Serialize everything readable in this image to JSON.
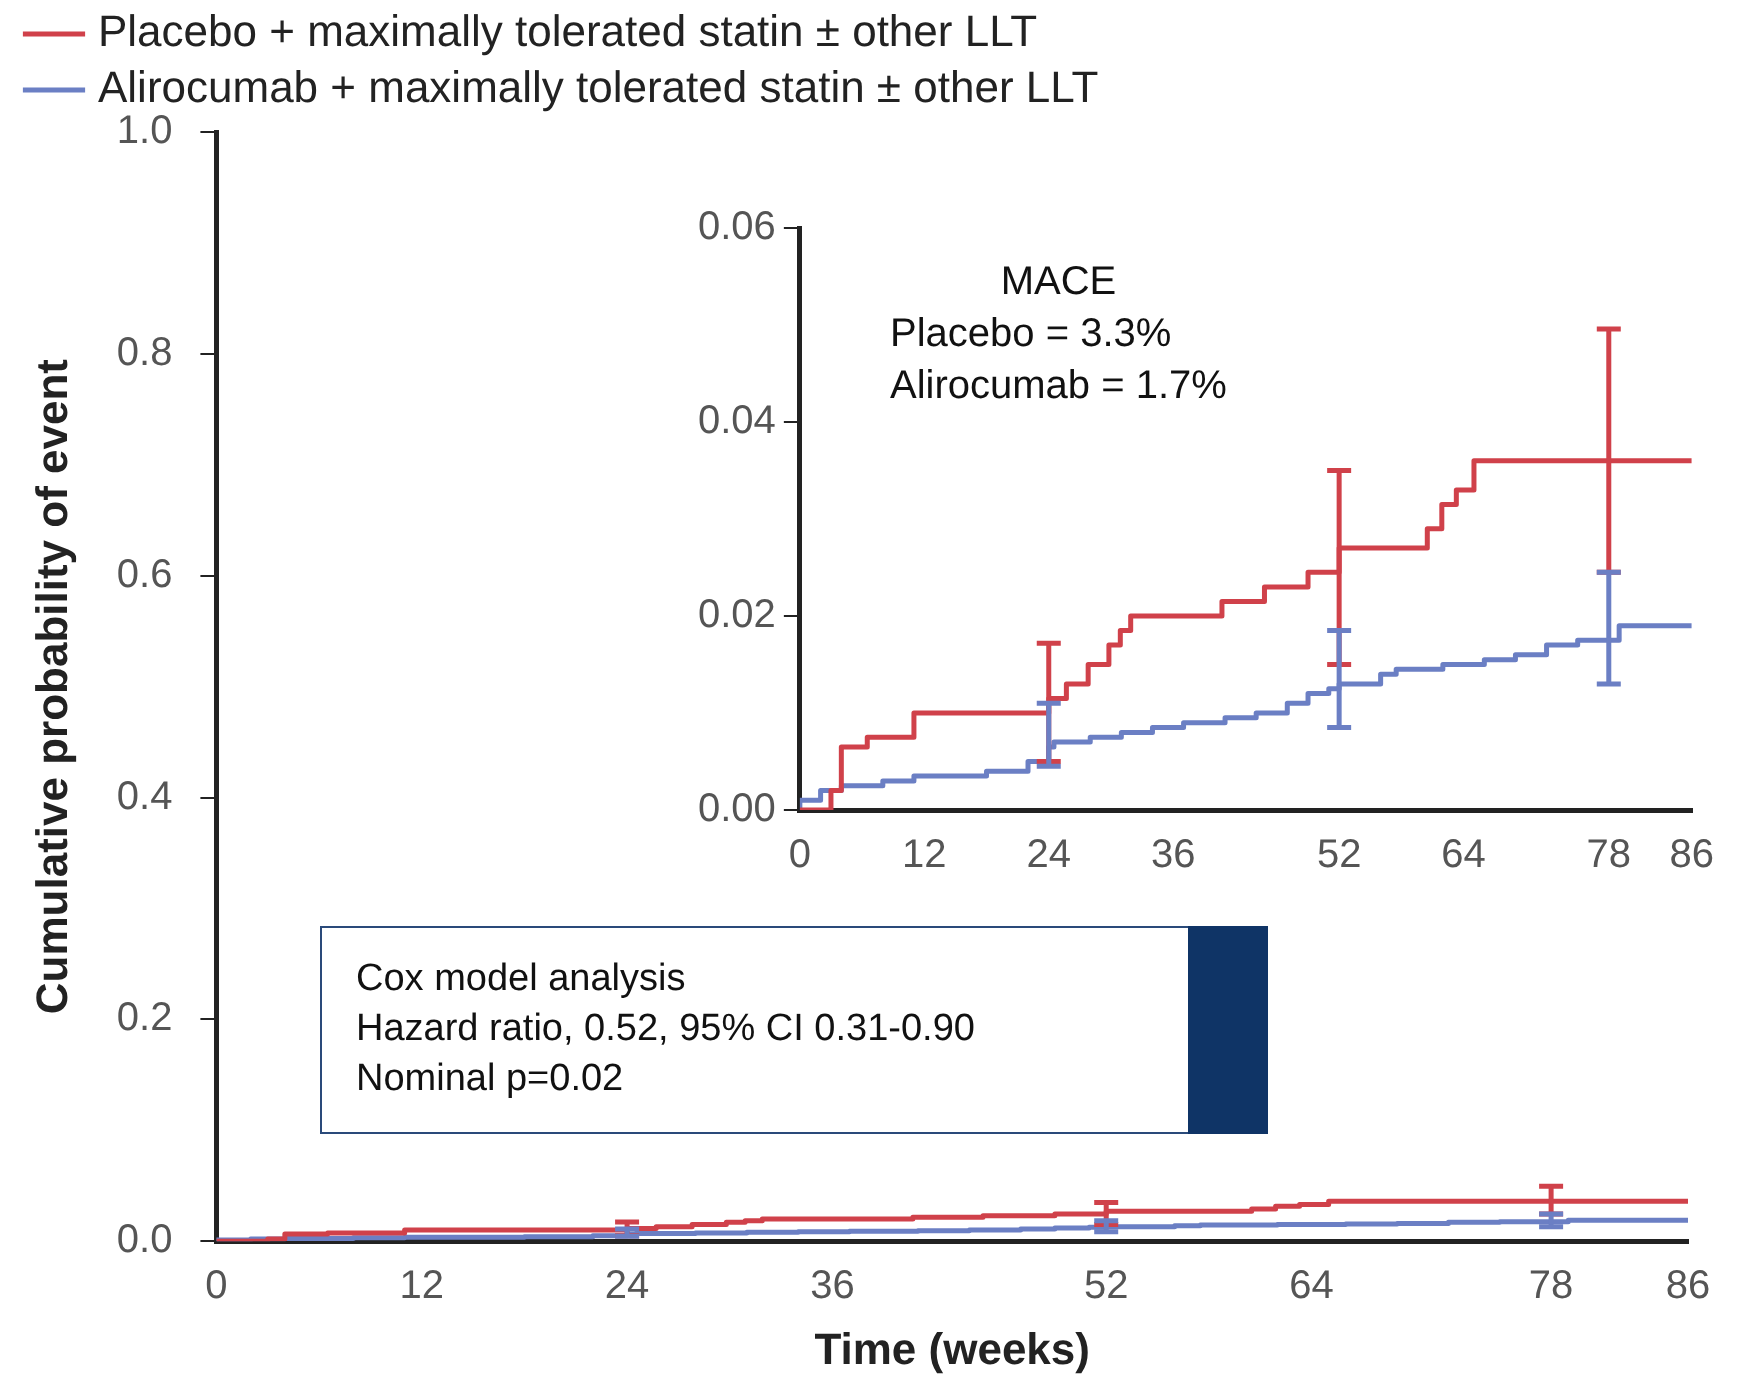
{
  "chart_data": [
    {
      "type": "step",
      "xlabel": "Time (weeks)",
      "ylabel": "Cumulative probability of event",
      "legend": "top left",
      "annotations": [
        "Cox model analysis",
        "Hazard ratio, 0.52, 95% CI 0.31-0.90",
        "Nominal p=0.02"
      ],
      "xlim": [
        0,
        86
      ],
      "xticks": [
        0,
        12,
        24,
        36,
        52,
        64,
        78,
        86
      ],
      "ylim": [
        0,
        1
      ],
      "yticks": [
        {
          "value": 0,
          "label": "0.0"
        },
        {
          "value": 0.2,
          "label": "0.2"
        },
        {
          "value": 0.4,
          "label": "0.4"
        },
        {
          "value": 0.6,
          "label": "0.6"
        },
        {
          "value": 0.8,
          "label": "0.8"
        },
        {
          "value": 1,
          "label": "1.0"
        }
      ],
      "series": [
        {
          "name": "Placebo + maximally tolerated statin ± other LLT",
          "color": "#d0414a",
          "x": [
            0,
            3,
            4,
            6.5,
            11,
            12.5,
            24,
            25.7,
            27.8,
            29.8,
            30.9,
            31.9,
            40.7,
            44.8,
            49,
            49.5,
            52,
            60.5,
            61.9,
            63.3,
            65,
            71,
            78,
            86
          ],
          "values": [
            0,
            0,
            0.002,
            0.0065,
            0.0075,
            0.01,
            0.01,
            0.0115,
            0.013,
            0.015,
            0.017,
            0.0185,
            0.02,
            0.0215,
            0.023,
            0.0245,
            0.0245,
            0.027,
            0.029,
            0.0315,
            0.033,
            0.036,
            0.036,
            0.036
          ],
          "errors": [
            null,
            null,
            null,
            null,
            null,
            null,
            [
              0.005,
              0.0172
            ],
            null,
            null,
            null,
            null,
            null,
            null,
            null,
            null,
            null,
            [
              0.015,
              0.035
            ],
            null,
            null,
            null,
            null,
            null,
            [
              0.0245,
              0.0496
            ],
            null
          ]
        },
        {
          "name": "Alirocumab + maximally tolerated statin ± other LLT",
          "color": "#6b7fc4",
          "x": [
            0,
            2,
            4,
            8,
            11,
            18,
            22,
            24,
            24.5,
            28,
            31,
            34,
            37,
            41,
            44,
            47,
            49,
            51,
            52,
            56,
            57.5,
            62,
            66,
            69,
            72,
            75,
            78,
            79,
            81,
            86
          ],
          "values": [
            0,
            0.001,
            0.002,
            0.0025,
            0.003,
            0.0035,
            0.004,
            0.005,
            0.0065,
            0.007,
            0.0075,
            0.008,
            0.0085,
            0.009,
            0.0095,
            0.01,
            0.011,
            0.012,
            0.0125,
            0.013,
            0.014,
            0.0145,
            0.015,
            0.0155,
            0.016,
            0.017,
            0.0175,
            0.0175,
            0.019,
            0.019
          ],
          "errors": [
            null,
            null,
            null,
            null,
            null,
            null,
            null,
            [
              0.0045,
              0.011
            ],
            null,
            null,
            null,
            null,
            null,
            null,
            null,
            null,
            null,
            null,
            [
              0.0085,
              0.0185
            ],
            null,
            null,
            null,
            null,
            null,
            null,
            null,
            [
              0.013,
              0.0245
            ],
            null,
            null,
            null
          ]
        }
      ]
    },
    {
      "type": "step",
      "annotations": [
        "MACE",
        "Placebo = 3.3%",
        "Alirocumab = 1.7%"
      ],
      "xlim": [
        0,
        86
      ],
      "xticks": [
        0,
        12,
        24,
        36,
        52,
        64,
        78,
        86
      ],
      "ylim": [
        0,
        0.06
      ],
      "yticks": [
        {
          "value": 0,
          "label": "0.00"
        },
        {
          "value": 0.02,
          "label": "0.02"
        },
        {
          "value": 0.04,
          "label": "0.04"
        },
        {
          "value": 0.06,
          "label": "0.06"
        }
      ],
      "series": [
        {
          "color": "#d0414a",
          "x": [
            0,
            3,
            4,
            6.5,
            11,
            12.5,
            24,
            25.7,
            27.8,
            29.8,
            30.9,
            31.9,
            40.7,
            44.8,
            49,
            49.5,
            52,
            60.5,
            61.9,
            63.3,
            65,
            71,
            78,
            86
          ],
          "values": [
            0,
            0,
            0.002,
            0.0065,
            0.0075,
            0.01,
            0.01,
            0.0115,
            0.013,
            0.015,
            0.017,
            0.0185,
            0.02,
            0.0215,
            0.023,
            0.0245,
            0.0245,
            0.027,
            0.029,
            0.0315,
            0.033,
            0.036,
            0.036,
            0.036
          ],
          "errors": [
            null,
            null,
            null,
            null,
            null,
            null,
            [
              0.005,
              0.0172
            ],
            null,
            null,
            null,
            null,
            null,
            null,
            null,
            null,
            null,
            [
              0.015,
              0.035
            ],
            null,
            null,
            null,
            null,
            null,
            [
              0.0245,
              0.0496
            ],
            null
          ]
        },
        {
          "color": "#6b7fc4",
          "x": [
            0,
            2,
            4,
            8,
            11,
            18,
            22,
            24,
            24.5,
            28,
            31,
            34,
            37,
            41,
            44,
            47,
            49,
            51,
            52,
            56,
            57.5,
            62,
            66,
            69,
            72,
            75,
            78,
            79,
            81,
            86
          ],
          "values": [
            0,
            0.001,
            0.002,
            0.0025,
            0.003,
            0.0035,
            0.004,
            0.005,
            0.0065,
            0.007,
            0.0075,
            0.008,
            0.0085,
            0.009,
            0.0095,
            0.01,
            0.011,
            0.012,
            0.0125,
            0.013,
            0.014,
            0.0145,
            0.015,
            0.0155,
            0.016,
            0.017,
            0.0175,
            0.0175,
            0.019,
            0.019
          ],
          "errors": [
            null,
            null,
            null,
            null,
            null,
            null,
            null,
            [
              0.0045,
              0.011
            ],
            null,
            null,
            null,
            null,
            null,
            null,
            null,
            null,
            null,
            null,
            [
              0.0085,
              0.0185
            ],
            null,
            null,
            null,
            null,
            null,
            null,
            null,
            [
              0.013,
              0.0245
            ],
            null,
            null,
            null
          ]
        }
      ]
    }
  ]
}
